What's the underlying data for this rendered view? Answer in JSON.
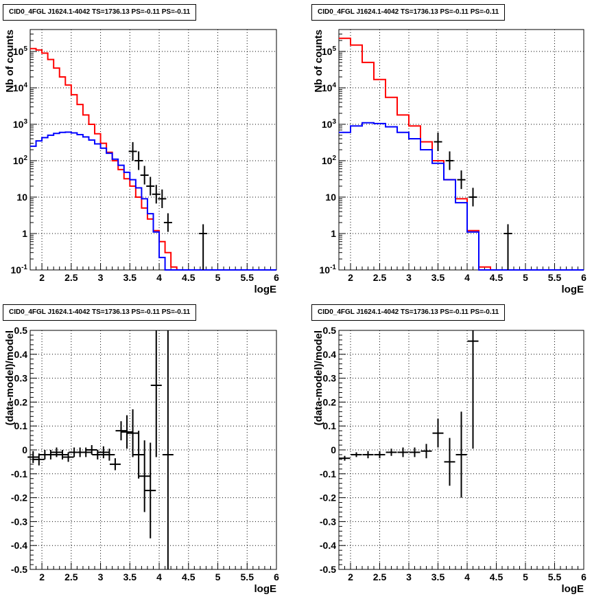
{
  "chart_data": [
    {
      "id": "tl",
      "type": "histogram",
      "title": "CID0_4FGL J1624.1-4042 TS=1736.13 PS=-0.11 PS=-0.11",
      "xlabel": "logE",
      "ylabel": "Nb of counts",
      "xlim": [
        1.8,
        6.0
      ],
      "ylim": [
        0.1,
        400000
      ],
      "yscale": "log",
      "grid": true,
      "x_ticks": [
        "2",
        "2.5",
        "3",
        "3.5",
        "4",
        "4.5",
        "5",
        "5.5",
        "6"
      ],
      "y_ticks": [
        "10^-1",
        "1",
        "10",
        "10^2",
        "10^3",
        "10^4",
        "10^5"
      ],
      "bin_edges": [
        1.8,
        1.9,
        2.0,
        2.1,
        2.2,
        2.3,
        2.4,
        2.5,
        2.6,
        2.7,
        2.8,
        2.9,
        3.0,
        3.1,
        3.2,
        3.3,
        3.4,
        3.5,
        3.6,
        3.7,
        3.8,
        3.9,
        4.0,
        4.1,
        4.2,
        4.3,
        4.4,
        4.5,
        4.6,
        4.7,
        4.8,
        4.9,
        5.0,
        5.1,
        5.2,
        5.3,
        5.4,
        5.5,
        5.6,
        5.7,
        5.8,
        5.9,
        6.0
      ],
      "series": [
        {
          "color": "#ff0000",
          "style": "step",
          "values": [
            120000,
            110000,
            90000,
            60000,
            35000,
            20000,
            12000,
            6500,
            3500,
            1800,
            1000,
            550,
            300,
            170,
            100,
            57,
            32,
            20,
            10,
            5,
            2.5,
            1.2,
            0.6,
            0.3,
            0.12,
            0.1,
            0.1,
            0.1,
            0.1,
            0.1,
            0.1,
            0.1,
            0.1,
            0.1,
            0.1,
            0.1,
            0.1,
            0.1,
            0.1,
            0.1,
            0.1,
            0.1
          ]
        },
        {
          "color": "#0000ff",
          "style": "step",
          "values": [
            250,
            350,
            430,
            500,
            560,
            600,
            610,
            580,
            520,
            450,
            370,
            290,
            220,
            160,
            110,
            75,
            48,
            30,
            18,
            9,
            3.5,
            1.1,
            0.22,
            0.1,
            0.1,
            0.1,
            0.1,
            0.1,
            0.1,
            0.1,
            0.1,
            0.1,
            0.1,
            0.1,
            0.1,
            0.1,
            0.1,
            0.1,
            0.1,
            0.1,
            0.1,
            0.1
          ]
        },
        {
          "color": "#000000",
          "style": "points",
          "points": [
            {
              "x": 3.55,
              "y": 180
            },
            {
              "x": 3.65,
              "y": 100
            },
            {
              "x": 3.75,
              "y": 40
            },
            {
              "x": 3.85,
              "y": 20
            },
            {
              "x": 3.95,
              "y": 12
            },
            {
              "x": 4.05,
              "y": 9
            },
            {
              "x": 4.15,
              "y": 2
            },
            {
              "x": 4.75,
              "y": 1
            }
          ]
        }
      ]
    },
    {
      "id": "tr",
      "type": "histogram",
      "title": "CID0_4FGL J1624.1-4042 TS=1736.13 PS=-0.11 PS=-0.11",
      "xlabel": "logE",
      "ylabel": "Nb of counts",
      "xlim": [
        1.8,
        6.0
      ],
      "ylim": [
        0.1,
        400000
      ],
      "yscale": "log",
      "grid": true,
      "x_ticks": [
        "2",
        "2.5",
        "3",
        "3.5",
        "4",
        "4.5",
        "5",
        "5.5",
        "6"
      ],
      "y_ticks": [
        "10^-1",
        "1",
        "10",
        "10^2",
        "10^3",
        "10^4",
        "10^5"
      ],
      "bin_edges": [
        1.8,
        2.0,
        2.2,
        2.4,
        2.6,
        2.8,
        3.0,
        3.2,
        3.4,
        3.6,
        3.8,
        4.0,
        4.2,
        4.4,
        4.6,
        4.8,
        5.0,
        5.2,
        5.4,
        5.6,
        5.8,
        6.0
      ],
      "series": [
        {
          "color": "#ff0000",
          "style": "step",
          "values": [
            230000,
            150000,
            50000,
            17000,
            5500,
            1800,
            900,
            330,
            100,
            30,
            9,
            1.2,
            0.12,
            0.1,
            0.1,
            0.1,
            0.1,
            0.1,
            0.1,
            0.1,
            0.1
          ]
        },
        {
          "color": "#0000ff",
          "style": "step",
          "values": [
            600,
            900,
            1100,
            1050,
            850,
            600,
            400,
            200,
            85,
            30,
            7,
            1.1,
            0.1,
            0.1,
            0.1,
            0.1,
            0.1,
            0.1,
            0.1,
            0.1,
            0.1
          ]
        },
        {
          "color": "#000000",
          "style": "points",
          "points": [
            {
              "x": 3.5,
              "y": 330
            },
            {
              "x": 3.7,
              "y": 100
            },
            {
              "x": 3.9,
              "y": 30
            },
            {
              "x": 4.1,
              "y": 10
            },
            {
              "x": 4.7,
              "y": 1
            }
          ]
        }
      ]
    },
    {
      "id": "bl",
      "type": "scatter",
      "title": "CID0_4FGL J1624.1-4042 TS=1736.13 PS=-0.11 PS=-0.11",
      "xlabel": "logE",
      "ylabel": "(data-model)/model",
      "xlim": [
        1.8,
        6.0
      ],
      "ylim": [
        -0.5,
        0.5
      ],
      "yscale": "linear",
      "grid": true,
      "x_ticks": [
        "2",
        "2.5",
        "3",
        "3.5",
        "4",
        "4.5",
        "5",
        "5.5",
        "6"
      ],
      "y_ticks": [
        "-0.5",
        "-0.4",
        "-0.3",
        "-0.2",
        "-0.1",
        "0",
        "0.1",
        "0.2",
        "0.3",
        "0.4",
        "0.5"
      ],
      "points": [
        {
          "x": 1.85,
          "y": -0.03,
          "err": 0.025
        },
        {
          "x": 1.95,
          "y": -0.04,
          "err": 0.025
        },
        {
          "x": 2.05,
          "y": -0.02,
          "err": 0.02
        },
        {
          "x": 2.15,
          "y": -0.02,
          "err": 0.02
        },
        {
          "x": 2.25,
          "y": -0.01,
          "err": 0.02
        },
        {
          "x": 2.35,
          "y": -0.02,
          "err": 0.02
        },
        {
          "x": 2.45,
          "y": -0.03,
          "err": 0.02
        },
        {
          "x": 2.55,
          "y": -0.01,
          "err": 0.02
        },
        {
          "x": 2.65,
          "y": -0.01,
          "err": 0.02
        },
        {
          "x": 2.75,
          "y": -0.01,
          "err": 0.02
        },
        {
          "x": 2.85,
          "y": 0.0,
          "err": 0.02
        },
        {
          "x": 2.95,
          "y": -0.02,
          "err": 0.02
        },
        {
          "x": 3.05,
          "y": -0.01,
          "err": 0.025
        },
        {
          "x": 3.15,
          "y": -0.02,
          "err": 0.025
        },
        {
          "x": 3.25,
          "y": -0.06,
          "err": 0.025
        },
        {
          "x": 3.35,
          "y": 0.08,
          "err": 0.04
        },
        {
          "x": 3.45,
          "y": 0.075,
          "err": 0.07
        },
        {
          "x": 3.55,
          "y": 0.07,
          "err": 0.1
        },
        {
          "x": 3.65,
          "y": -0.02,
          "err": 0.1
        },
        {
          "x": 3.75,
          "y": -0.11,
          "err": 0.15
        },
        {
          "x": 3.85,
          "y": -0.17,
          "err": 0.2
        },
        {
          "x": 3.95,
          "y": 0.27,
          "err": 0.3
        },
        {
          "x": 4.15,
          "y": -0.02,
          "err": 0.6
        }
      ]
    },
    {
      "id": "br",
      "type": "scatter",
      "title": "CID0_4FGL J1624.1-4042 TS=1736.13 PS=-0.11 PS=-0.11",
      "xlabel": "logE",
      "ylabel": "(data-model)/model",
      "xlim": [
        1.8,
        6.0
      ],
      "ylim": [
        -0.5,
        0.5
      ],
      "yscale": "linear",
      "grid": true,
      "x_ticks": [
        "2",
        "2.5",
        "3",
        "3.5",
        "4",
        "4.5",
        "5",
        "5.5",
        "6"
      ],
      "y_ticks": [
        "-0.5",
        "-0.4",
        "-0.3",
        "-0.2",
        "-0.1",
        "0",
        "0.1",
        "0.2",
        "0.3",
        "0.4",
        "0.5"
      ],
      "points": [
        {
          "x": 1.9,
          "y": -0.035,
          "err": 0.01
        },
        {
          "x": 2.1,
          "y": -0.02,
          "err": 0.01
        },
        {
          "x": 2.3,
          "y": -0.02,
          "err": 0.015
        },
        {
          "x": 2.5,
          "y": -0.02,
          "err": 0.015
        },
        {
          "x": 2.7,
          "y": -0.01,
          "err": 0.015
        },
        {
          "x": 2.9,
          "y": -0.01,
          "err": 0.02
        },
        {
          "x": 3.1,
          "y": -0.01,
          "err": 0.02
        },
        {
          "x": 3.3,
          "y": -0.005,
          "err": 0.03
        },
        {
          "x": 3.5,
          "y": 0.07,
          "err": 0.06
        },
        {
          "x": 3.7,
          "y": -0.05,
          "err": 0.1
        },
        {
          "x": 3.9,
          "y": -0.02,
          "err": 0.18
        },
        {
          "x": 4.1,
          "y": 0.455,
          "err": 0.45
        }
      ]
    }
  ]
}
